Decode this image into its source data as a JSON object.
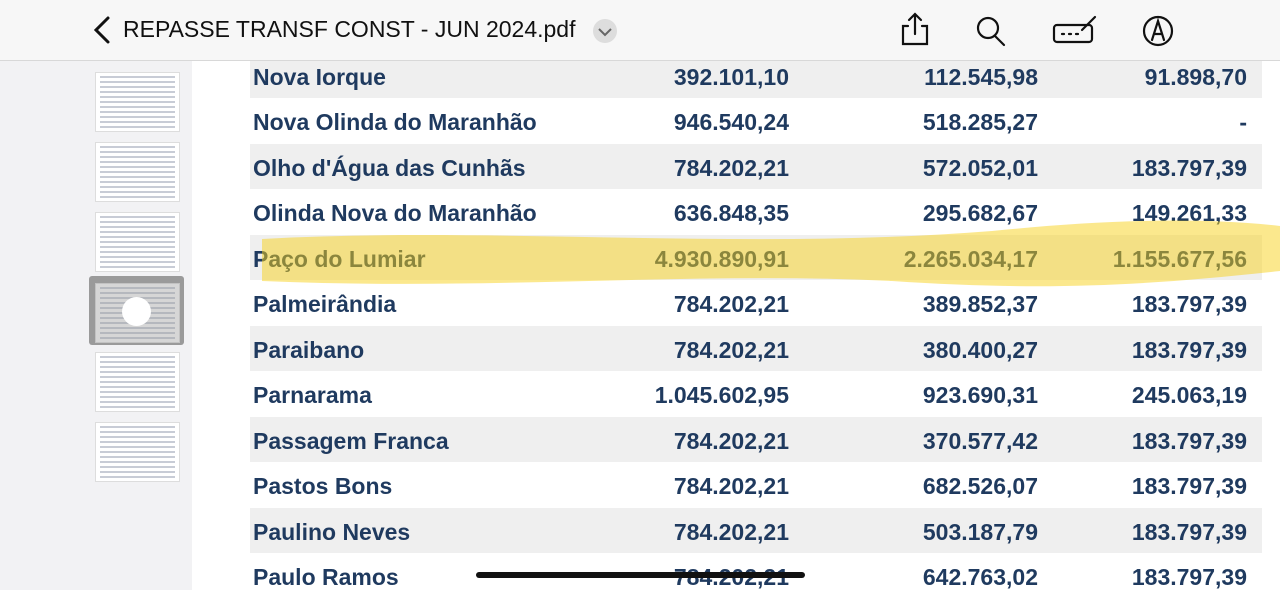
{
  "header": {
    "title": "REPASSE TRANSF CONST - JUN 2024.pdf"
  },
  "table": {
    "rows": [
      [
        "Nova Iorque",
        "392.101,10",
        "112.545,98",
        "91.898,70"
      ],
      [
        "Nova Olinda do Maranhão",
        "946.540,24",
        "518.285,27",
        "-"
      ],
      [
        "Olho d'Água das Cunhãs",
        "784.202,21",
        "572.052,01",
        "183.797,39"
      ],
      [
        "Olinda Nova do Maranhão",
        "636.848,35",
        "295.682,67",
        "149.261,33"
      ],
      [
        "Paço do Lumiar",
        "4.930.890,91",
        "2.265.034,17",
        "1.155.677,56"
      ],
      [
        "Palmeirândia",
        "784.202,21",
        "389.852,37",
        "183.797,39"
      ],
      [
        "Paraibano",
        "784.202,21",
        "380.400,27",
        "183.797,39"
      ],
      [
        "Parnarama",
        "1.045.602,95",
        "923.690,31",
        "245.063,19"
      ],
      [
        "Passagem Franca",
        "784.202,21",
        "370.577,42",
        "183.797,39"
      ],
      [
        "Pastos Bons",
        "784.202,21",
        "682.526,07",
        "183.797,39"
      ],
      [
        "Paulino Neves",
        "784.202,21",
        "503.187,79",
        "183.797,39"
      ],
      [
        "Paulo Ramos",
        "784.202,21",
        "642.763,02",
        "183.797,39"
      ]
    ]
  }
}
